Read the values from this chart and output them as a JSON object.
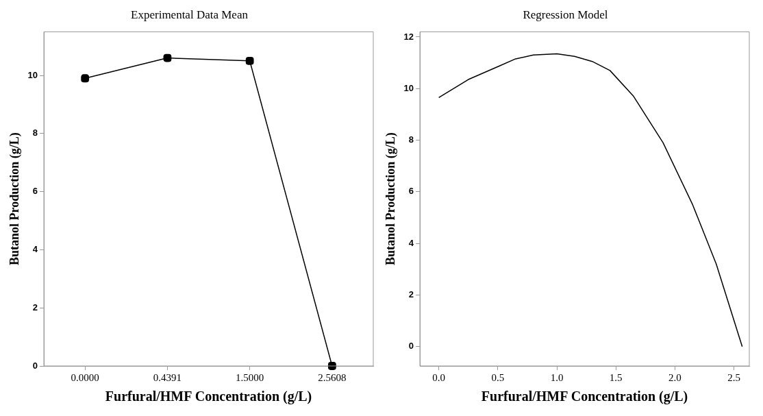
{
  "chart_data": [
    {
      "type": "line",
      "title": "Experimental Data Mean",
      "xlabel": "Furfural/HMF Concentration (g/L)",
      "ylabel": "Butanol Production (g/L)",
      "categories": [
        "0.0000",
        "0.4391",
        "1.5000",
        "2.5608"
      ],
      "series": [
        {
          "color": "#000000",
          "values": [
            9.9,
            10.6,
            10.5,
            0.0
          ]
        }
      ],
      "ylim": [
        0,
        11.5
      ],
      "yticks": [
        0,
        2,
        4,
        6,
        8,
        10
      ],
      "marker": "square",
      "grid": false,
      "legend": false
    },
    {
      "type": "line",
      "title": "Regression Model",
      "xlabel": "Furfural/HMF Concentration (g/L)",
      "ylabel": "Butanol Production (g/L)",
      "x": [
        0.0,
        0.25,
        0.5,
        0.65,
        0.8,
        1.0,
        1.15,
        1.3,
        1.45,
        1.65,
        1.9,
        2.15,
        2.35,
        2.57
      ],
      "series": [
        {
          "color": "#000000",
          "values": [
            9.65,
            10.35,
            10.85,
            11.15,
            11.3,
            11.35,
            11.25,
            11.05,
            10.7,
            9.7,
            7.9,
            5.5,
            3.2,
            0.0
          ]
        }
      ],
      "xlim": [
        -0.16,
        2.63
      ],
      "xticks": [
        {
          "value": 0,
          "label": "0.0"
        },
        {
          "value": 0.5,
          "label": "0.5"
        },
        {
          "value": 1,
          "label": "1.0"
        },
        {
          "value": 1.5,
          "label": "1.5"
        },
        {
          "value": 2,
          "label": "2.0"
        },
        {
          "value": 2.5,
          "label": "2.5"
        }
      ],
      "ylim": [
        -0.75,
        12.2
      ],
      "yticks": [
        0,
        2,
        4,
        6,
        8,
        10,
        12
      ],
      "marker": "none",
      "grid": false,
      "legend": false
    }
  ]
}
